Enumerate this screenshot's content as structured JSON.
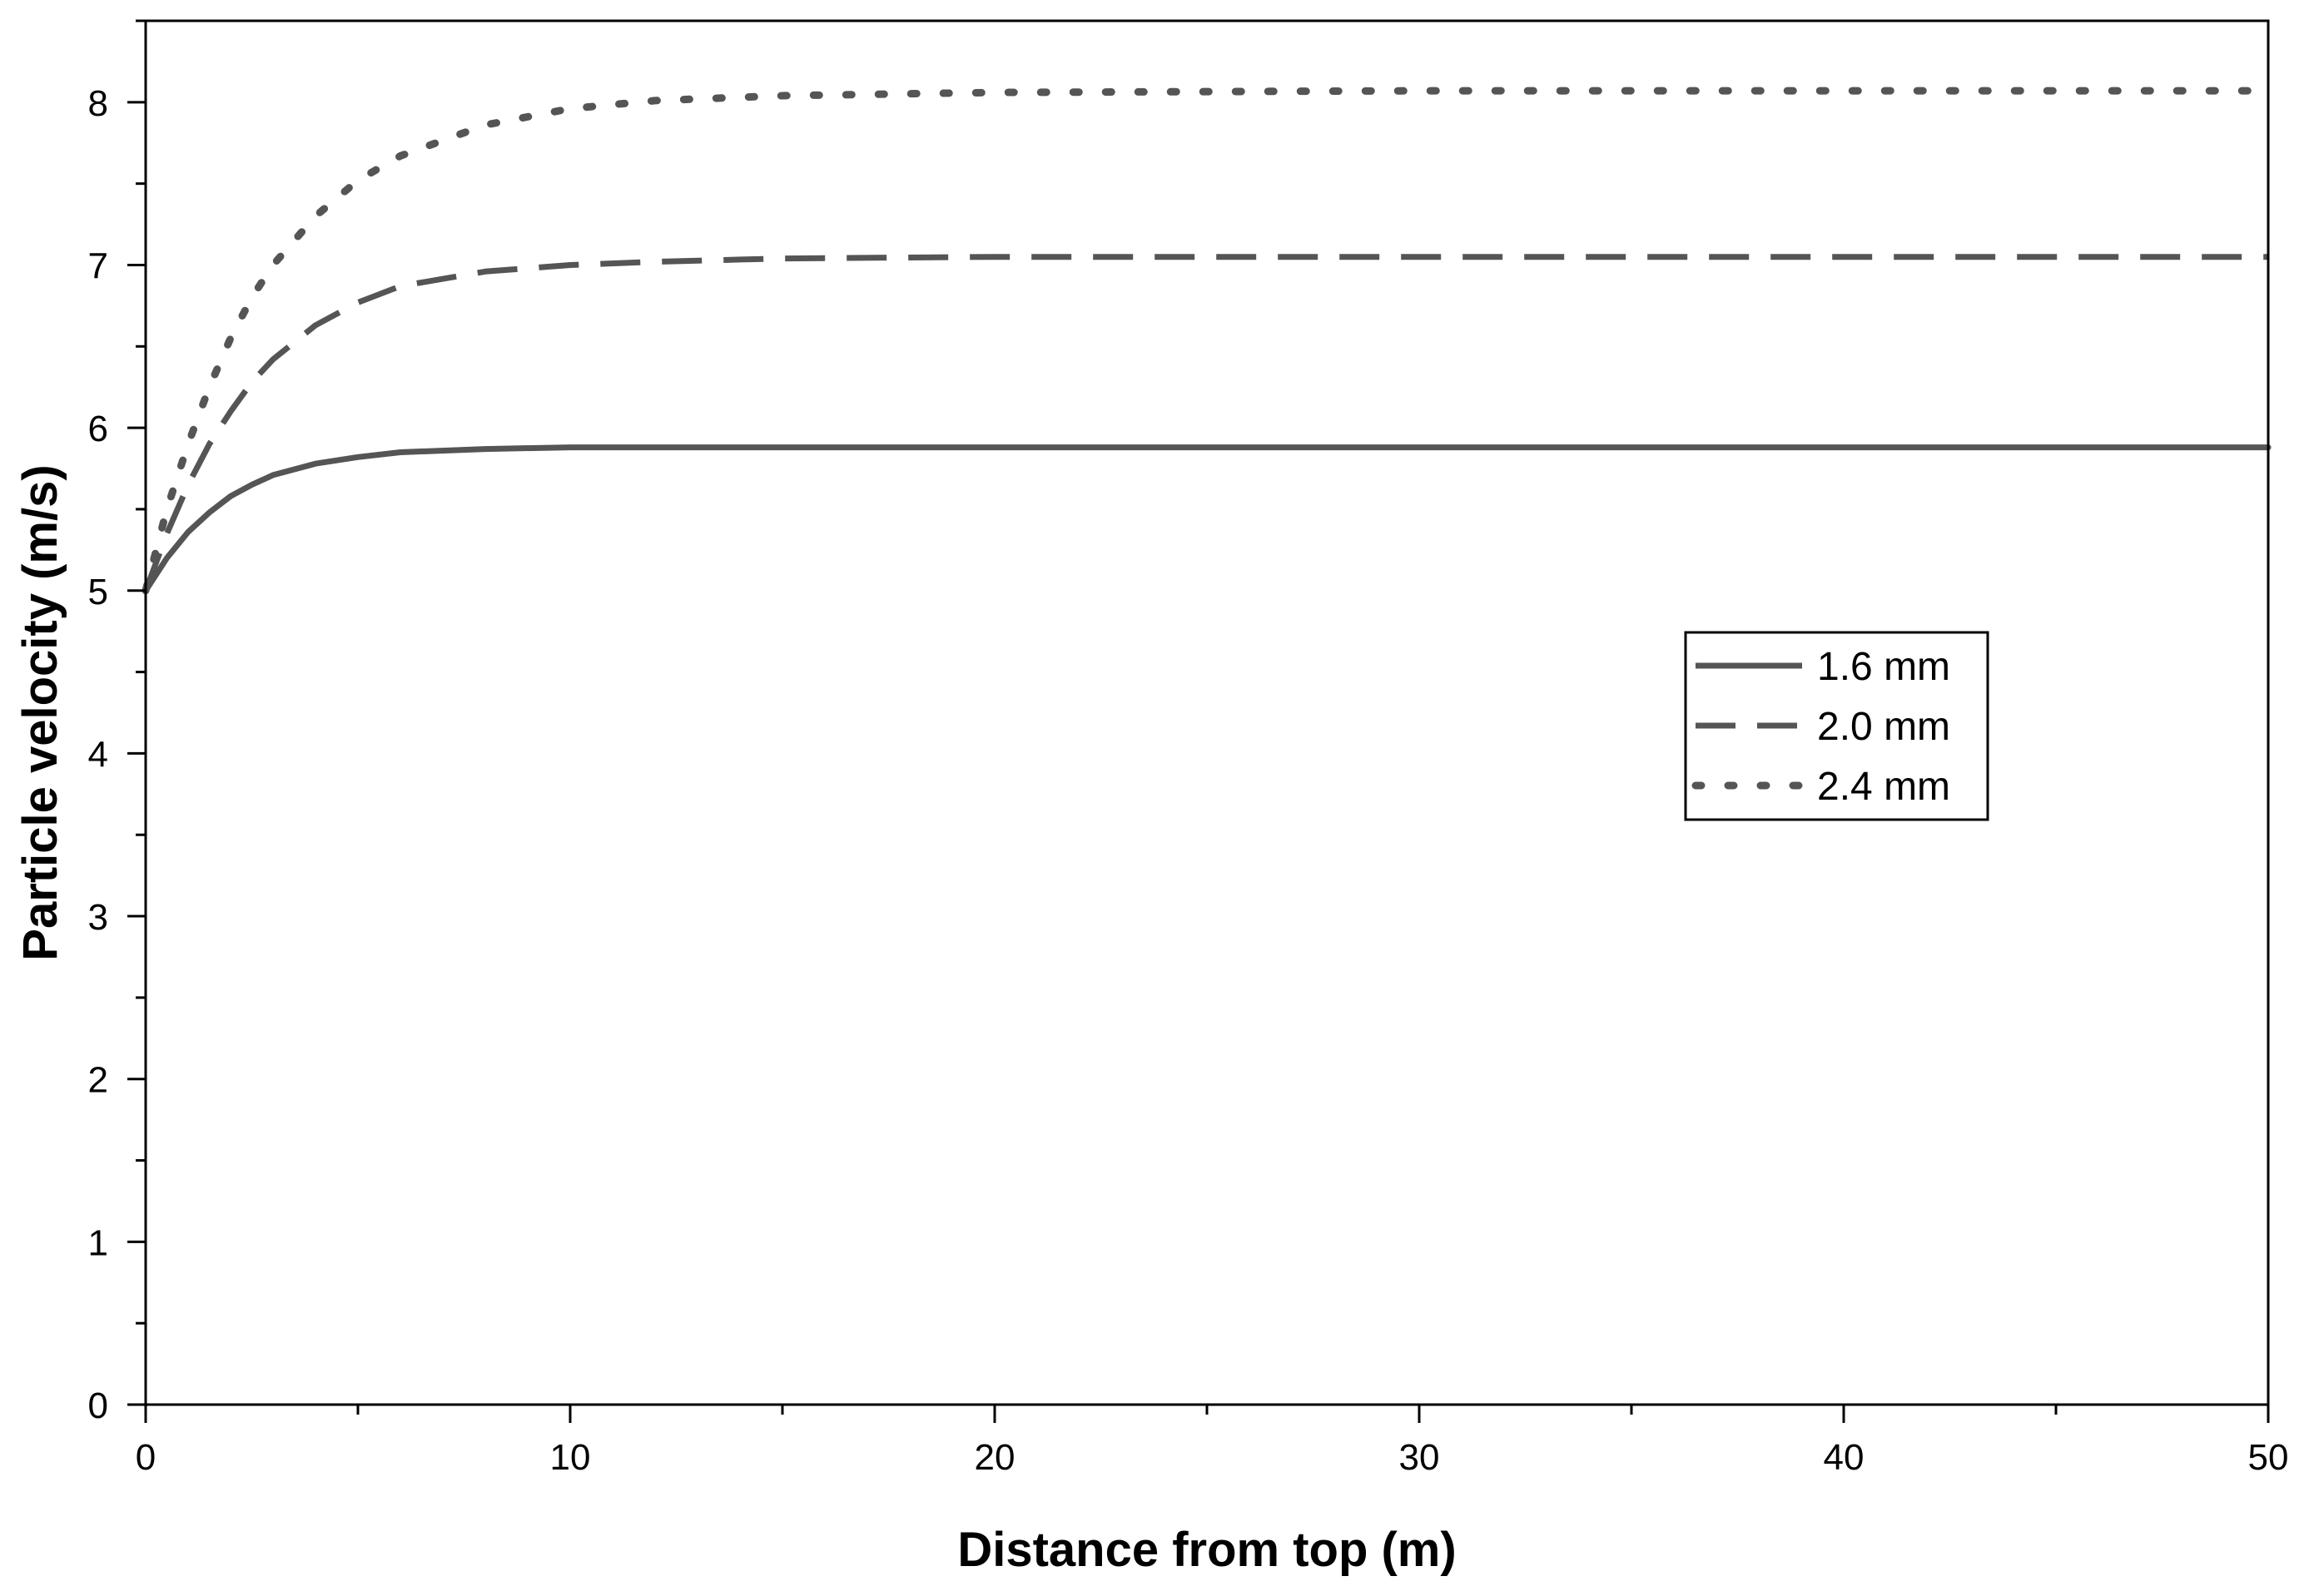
{
  "chart_data": {
    "type": "line",
    "title": "",
    "xlabel": "Distance from top (m)",
    "ylabel": "Particle velocity (m/s)",
    "xlim": [
      0,
      50
    ],
    "ylim": [
      0,
      8.5
    ],
    "xticks": [
      0,
      10,
      20,
      30,
      40,
      50
    ],
    "yticks": [
      0,
      1,
      2,
      3,
      4,
      5,
      6,
      7,
      8
    ],
    "grid": false,
    "legend_position": "center-right",
    "series": [
      {
        "name": "1.6 mm",
        "style": "solid",
        "color": "#555555",
        "x": [
          0,
          0.5,
          1,
          1.5,
          2,
          2.5,
          3,
          4,
          5,
          6,
          8,
          10,
          12,
          15,
          20,
          30,
          40,
          50
        ],
        "y": [
          5.0,
          5.2,
          5.36,
          5.48,
          5.58,
          5.65,
          5.71,
          5.78,
          5.82,
          5.85,
          5.87,
          5.88,
          5.88,
          5.88,
          5.88,
          5.88,
          5.88,
          5.88
        ]
      },
      {
        "name": "2.0 mm",
        "style": "dashed",
        "color": "#555555",
        "x": [
          0,
          0.5,
          1,
          1.5,
          2,
          2.5,
          3,
          4,
          5,
          6,
          8,
          10,
          12,
          15,
          20,
          30,
          40,
          50
        ],
        "y": [
          5.0,
          5.35,
          5.65,
          5.9,
          6.1,
          6.28,
          6.42,
          6.63,
          6.77,
          6.87,
          6.96,
          7.0,
          7.02,
          7.04,
          7.05,
          7.05,
          7.05,
          7.05
        ]
      },
      {
        "name": "2.4 mm",
        "style": "dotted",
        "color": "#555555",
        "x": [
          0,
          0.5,
          1,
          1.5,
          2,
          2.5,
          3,
          4,
          5,
          6,
          8,
          10,
          12,
          15,
          20,
          30,
          40,
          50
        ],
        "y": [
          5.0,
          5.5,
          5.9,
          6.25,
          6.55,
          6.8,
          7.0,
          7.3,
          7.52,
          7.67,
          7.86,
          7.96,
          8.01,
          8.04,
          8.06,
          8.07,
          8.07,
          8.07
        ]
      }
    ]
  }
}
